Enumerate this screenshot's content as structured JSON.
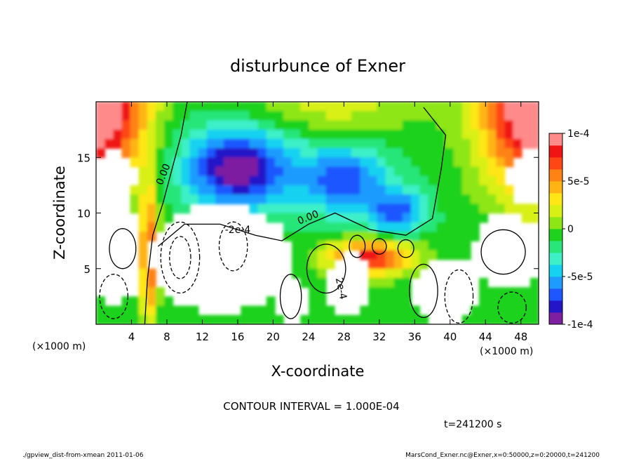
{
  "chart_data": {
    "type": "heatmap",
    "title": "disturbunce of Exner",
    "xlabel": "X-coordinate",
    "ylabel": "Z-coordinate",
    "x_unit_left": "(×1000 m)",
    "x_unit_right": "(×1000 m)",
    "xlim": [
      0,
      50
    ],
    "ylim": [
      0,
      20
    ],
    "xticks": [
      4,
      8,
      12,
      16,
      20,
      24,
      28,
      32,
      36,
      40,
      44,
      48
    ],
    "yticks": [
      5,
      10,
      15
    ],
    "colorbar": {
      "ticks": [
        "1e-4",
        "5e-5",
        "0",
        "-5e-5",
        "-1e-4"
      ],
      "tick_values": [
        0.0001,
        5e-05,
        0,
        -5e-05,
        -0.0001
      ],
      "range": [
        -0.0001,
        0.0001
      ],
      "colors": [
        "#7d1fa0",
        "#2416c8",
        "#1e57ff",
        "#1e9bff",
        "#14d2f0",
        "#3ef0c8",
        "#28e67a",
        "#1ed21e",
        "#8ee614",
        "#d8f014",
        "#ffe614",
        "#ffb414",
        "#ff8214",
        "#ff4614",
        "#f01414",
        "#ff8a8a"
      ]
    },
    "contour_labels": [
      "0.00",
      "0.00",
      "-2e-4",
      "2e-4"
    ],
    "contour_interval": "CONTOUR INTERVAL = 1.000E-04",
    "time_label": "t=241200 s",
    "footer_left": "./gpview_dist-from-xmean  2011-01-06",
    "footer_right": "MarsCond_Exner.nc@Exner,x=0:50000,z=0:20000,t=241200"
  }
}
